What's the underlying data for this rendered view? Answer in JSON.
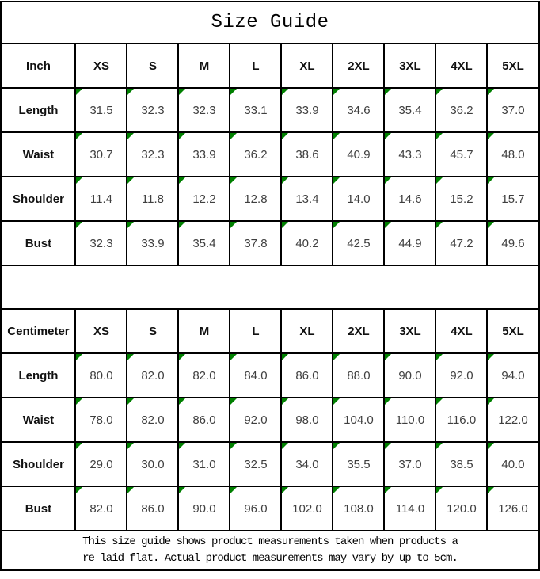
{
  "title": "Size Guide",
  "footer_lines": [
    "This size guide shows product measurements taken when products a",
    "re laid flat. Actual product measurements may vary by up to 5cm."
  ],
  "colors": {
    "triangle_green": "#008000",
    "grid_line": "#000000",
    "background": "#ffffff"
  },
  "icons": {
    "cell_corner_marker": "green-corner-triangle-icon"
  },
  "chart_data": [
    {
      "type": "table",
      "title": "Size Guide",
      "unit": "Inch",
      "sizes": [
        "XS",
        "S",
        "M",
        "L",
        "XL",
        "2XL",
        "3XL",
        "4XL",
        "5XL"
      ],
      "rows": [
        {
          "label": "Length",
          "values": [
            "31.5",
            "32.3",
            "32.3",
            "33.1",
            "33.9",
            "34.6",
            "35.4",
            "36.2",
            "37.0"
          ]
        },
        {
          "label": "Waist",
          "values": [
            "30.7",
            "32.3",
            "33.9",
            "36.2",
            "38.6",
            "40.9",
            "43.3",
            "45.7",
            "48.0"
          ]
        },
        {
          "label": "Shoulder",
          "values": [
            "11.4",
            "11.8",
            "12.2",
            "12.8",
            "13.4",
            "14.0",
            "14.6",
            "15.2",
            "15.7"
          ]
        },
        {
          "label": "Bust",
          "values": [
            "32.3",
            "33.9",
            "35.4",
            "37.8",
            "40.2",
            "42.5",
            "44.9",
            "47.2",
            "49.6"
          ]
        }
      ]
    },
    {
      "type": "table",
      "title": "Size Guide",
      "unit": "Centimeter",
      "sizes": [
        "XS",
        "S",
        "M",
        "L",
        "XL",
        "2XL",
        "3XL",
        "4XL",
        "5XL"
      ],
      "rows": [
        {
          "label": "Length",
          "values": [
            "80.0",
            "82.0",
            "82.0",
            "84.0",
            "86.0",
            "88.0",
            "90.0",
            "92.0",
            "94.0"
          ]
        },
        {
          "label": "Waist",
          "values": [
            "78.0",
            "82.0",
            "86.0",
            "92.0",
            "98.0",
            "104.0",
            "110.0",
            "116.0",
            "122.0"
          ]
        },
        {
          "label": "Shoulder",
          "values": [
            "29.0",
            "30.0",
            "31.0",
            "32.5",
            "34.0",
            "35.5",
            "37.0",
            "38.5",
            "40.0"
          ]
        },
        {
          "label": "Bust",
          "values": [
            "82.0",
            "86.0",
            "90.0",
            "96.0",
            "102.0",
            "108.0",
            "114.0",
            "120.0",
            "126.0"
          ]
        }
      ]
    }
  ]
}
